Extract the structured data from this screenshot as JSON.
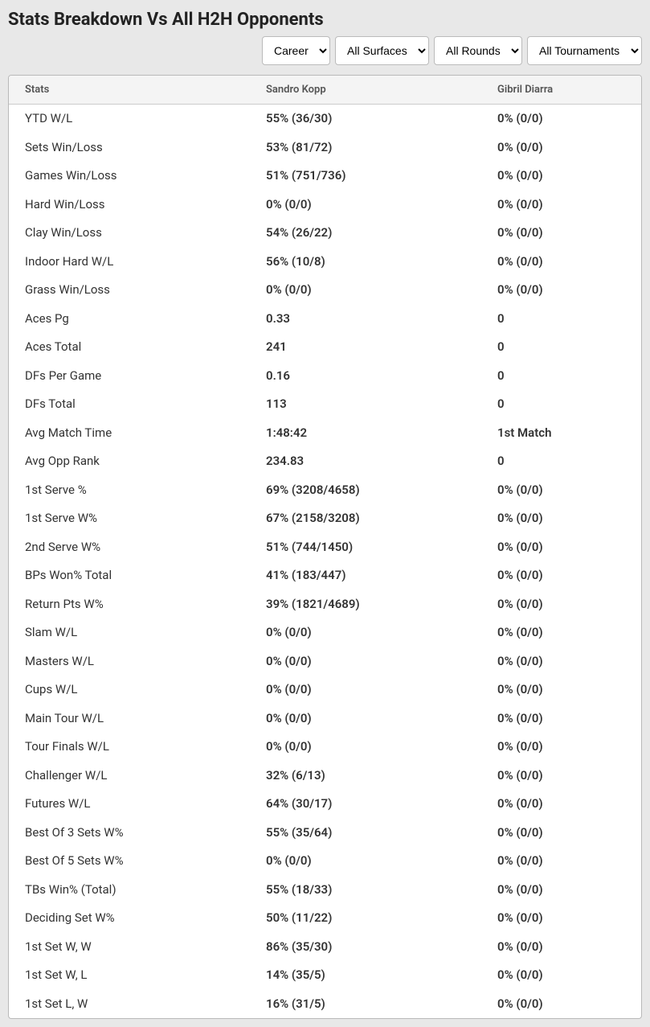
{
  "title": "Stats Breakdown Vs All H2H Opponents",
  "filters": {
    "period": {
      "selected": "Career",
      "options": [
        "Career"
      ]
    },
    "surface": {
      "selected": "All Surfaces",
      "options": [
        "All Surfaces"
      ]
    },
    "round": {
      "selected": "All Rounds",
      "options": [
        "All Rounds"
      ]
    },
    "tournament": {
      "selected": "All Tournaments",
      "options": [
        "All Tournaments"
      ]
    }
  },
  "table": {
    "columns": [
      "Stats",
      "Sandro Kopp",
      "Gibril Diarra"
    ],
    "rows": [
      [
        "YTD W/L",
        "55% (36/30)",
        "0% (0/0)"
      ],
      [
        "Sets Win/Loss",
        "53% (81/72)",
        "0% (0/0)"
      ],
      [
        "Games Win/Loss",
        "51% (751/736)",
        "0% (0/0)"
      ],
      [
        "Hard Win/Loss",
        "0% (0/0)",
        "0% (0/0)"
      ],
      [
        "Clay Win/Loss",
        "54% (26/22)",
        "0% (0/0)"
      ],
      [
        "Indoor Hard W/L",
        "56% (10/8)",
        "0% (0/0)"
      ],
      [
        "Grass Win/Loss",
        "0% (0/0)",
        "0% (0/0)"
      ],
      [
        "Aces Pg",
        "0.33",
        "0"
      ],
      [
        "Aces Total",
        "241",
        "0"
      ],
      [
        "DFs Per Game",
        "0.16",
        "0"
      ],
      [
        "DFs Total",
        "113",
        "0"
      ],
      [
        "Avg Match Time",
        "1:48:42",
        "1st Match"
      ],
      [
        "Avg Opp Rank",
        "234.83",
        "0"
      ],
      [
        "1st Serve %",
        "69% (3208/4658)",
        "0% (0/0)"
      ],
      [
        "1st Serve W%",
        "67% (2158/3208)",
        "0% (0/0)"
      ],
      [
        "2nd Serve W%",
        "51% (744/1450)",
        "0% (0/0)"
      ],
      [
        "BPs Won% Total",
        "41% (183/447)",
        "0% (0/0)"
      ],
      [
        "Return Pts W%",
        "39% (1821/4689)",
        "0% (0/0)"
      ],
      [
        "Slam W/L",
        "0% (0/0)",
        "0% (0/0)"
      ],
      [
        "Masters W/L",
        "0% (0/0)",
        "0% (0/0)"
      ],
      [
        "Cups W/L",
        "0% (0/0)",
        "0% (0/0)"
      ],
      [
        "Main Tour W/L",
        "0% (0/0)",
        "0% (0/0)"
      ],
      [
        "Tour Finals W/L",
        "0% (0/0)",
        "0% (0/0)"
      ],
      [
        "Challenger W/L",
        "32% (6/13)",
        "0% (0/0)"
      ],
      [
        "Futures W/L",
        "64% (30/17)",
        "0% (0/0)"
      ],
      [
        "Best Of 3 Sets W%",
        "55% (35/64)",
        "0% (0/0)"
      ],
      [
        "Best Of 5 Sets W%",
        "0% (0/0)",
        "0% (0/0)"
      ],
      [
        "TBs Win% (Total)",
        "55% (18/33)",
        "0% (0/0)"
      ],
      [
        "Deciding Set W%",
        "50% (11/22)",
        "0% (0/0)"
      ],
      [
        "1st Set W, W",
        "86% (35/30)",
        "0% (0/0)"
      ],
      [
        "1st Set W, L",
        "14% (35/5)",
        "0% (0/0)"
      ],
      [
        "1st Set L, W",
        "16% (31/5)",
        "0% (0/0)"
      ]
    ]
  }
}
